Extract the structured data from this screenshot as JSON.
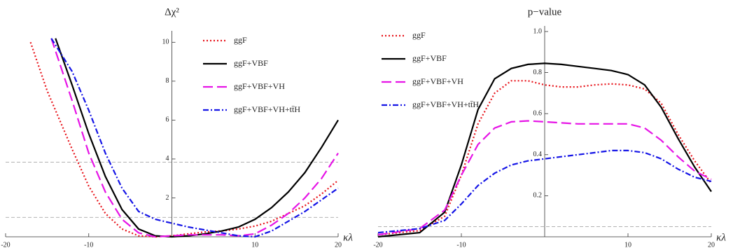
{
  "chart_data": [
    {
      "type": "line",
      "title": "Δχ²",
      "x_label": "κλ",
      "xlim": [
        -20,
        20
      ],
      "ylim": [
        0,
        10.3
      ],
      "xticks": [
        -20,
        -10,
        10,
        20
      ],
      "yticks": [
        2,
        4,
        6,
        8,
        10
      ],
      "hlines": [
        1,
        3.84
      ],
      "series": [
        {
          "name": "ggF",
          "color": "#e8141b",
          "x": [
            -17,
            -15,
            -12,
            -10,
            -8,
            -6,
            -4,
            -2,
            0,
            2,
            4,
            6,
            8,
            10,
            12,
            14,
            16,
            18,
            20
          ],
          "values": [
            10,
            7.5,
            4.5,
            2.6,
            1.2,
            0.4,
            0.05,
            0,
            0.05,
            0.15,
            0.25,
            0.3,
            0.4,
            0.55,
            0.8,
            1.2,
            1.6,
            2.2,
            2.9
          ]
        },
        {
          "name": "ggF+VBF",
          "color": "#000000",
          "x": [
            -14,
            -12,
            -10,
            -8,
            -6,
            -4,
            -2,
            0,
            2,
            4,
            6,
            8,
            10,
            12,
            14,
            16,
            18,
            20
          ],
          "values": [
            10.2,
            7.8,
            5.3,
            3.1,
            1.4,
            0.4,
            0.05,
            0,
            0.05,
            0.15,
            0.3,
            0.5,
            0.9,
            1.5,
            2.3,
            3.3,
            4.6,
            6
          ]
        },
        {
          "name": "ggF+VBF+VH",
          "color": "#e614e6",
          "x": [
            -14.5,
            -12,
            -10,
            -8,
            -6,
            -4,
            -2,
            0,
            2,
            4,
            6,
            8,
            10,
            12,
            14,
            16,
            18,
            20
          ],
          "values": [
            10.2,
            7,
            4.3,
            2.3,
            0.9,
            0.2,
            0,
            0.05,
            0.1,
            0.1,
            0.1,
            0.05,
            0.15,
            0.6,
            1.2,
            2,
            3,
            4.3
          ]
        },
        {
          "name": "ggF+VBF+VH+tt̄H",
          "color": "#1414e6",
          "x": [
            -14.5,
            -12,
            -10,
            -8,
            -6,
            -4,
            -2,
            0,
            2,
            4,
            6,
            8,
            10,
            12,
            14,
            16,
            18,
            20
          ],
          "values": [
            10.2,
            8.5,
            6.5,
            4.3,
            2.5,
            1.3,
            0.9,
            0.7,
            0.5,
            0.35,
            0.2,
            0.05,
            0,
            0.3,
            0.8,
            1.3,
            1.9,
            2.5
          ]
        }
      ]
    },
    {
      "type": "line",
      "title": "p−value",
      "x_label": "κλ",
      "xlim": [
        -20,
        20
      ],
      "ylim": [
        0,
        1.0
      ],
      "xticks": [
        -20,
        -10,
        10,
        20
      ],
      "yticks": [
        0.2,
        0.4,
        0.6,
        0.8,
        {
          "value": 1.0,
          "label": "1.0"
        }
      ],
      "hlines": [
        0.05
      ],
      "series": [
        {
          "name": "ggF",
          "color": "#e8141b",
          "x": [
            -20,
            -15,
            -12,
            -10,
            -8,
            -6,
            -4,
            -2,
            0,
            2,
            4,
            6,
            8,
            10,
            12,
            14,
            16,
            18,
            20
          ],
          "values": [
            0.01,
            0.03,
            0.1,
            0.3,
            0.55,
            0.7,
            0.76,
            0.76,
            0.74,
            0.73,
            0.73,
            0.74,
            0.745,
            0.74,
            0.72,
            0.65,
            0.5,
            0.37,
            0.26
          ]
        },
        {
          "name": "ggF+VBF",
          "color": "#000000",
          "x": [
            -20,
            -15,
            -12,
            -10,
            -8,
            -6,
            -4,
            -2,
            0,
            2,
            4,
            6,
            8,
            10,
            12,
            14,
            16,
            18,
            20
          ],
          "values": [
            0.0,
            0.02,
            0.12,
            0.35,
            0.62,
            0.77,
            0.82,
            0.84,
            0.845,
            0.84,
            0.83,
            0.82,
            0.81,
            0.79,
            0.74,
            0.63,
            0.48,
            0.34,
            0.22
          ]
        },
        {
          "name": "ggF+VBF+VH",
          "color": "#e614e6",
          "x": [
            -20,
            -15,
            -12,
            -10,
            -8,
            -6,
            -4,
            -2,
            0,
            2,
            4,
            6,
            8,
            10,
            12,
            14,
            16,
            18,
            20
          ],
          "values": [
            0.01,
            0.04,
            0.13,
            0.3,
            0.45,
            0.53,
            0.56,
            0.565,
            0.56,
            0.555,
            0.55,
            0.55,
            0.55,
            0.55,
            0.53,
            0.47,
            0.39,
            0.32,
            0.28
          ]
        },
        {
          "name": "ggF+VBF+VH+tt̄H",
          "color": "#1414e6",
          "x": [
            -20,
            -15,
            -12,
            -10,
            -8,
            -6,
            -4,
            -2,
            0,
            2,
            4,
            6,
            8,
            10,
            12,
            14,
            16,
            18,
            20
          ],
          "values": [
            0.02,
            0.04,
            0.08,
            0.16,
            0.25,
            0.31,
            0.35,
            0.37,
            0.38,
            0.39,
            0.4,
            0.41,
            0.42,
            0.42,
            0.41,
            0.38,
            0.33,
            0.29,
            0.27
          ]
        }
      ]
    }
  ]
}
